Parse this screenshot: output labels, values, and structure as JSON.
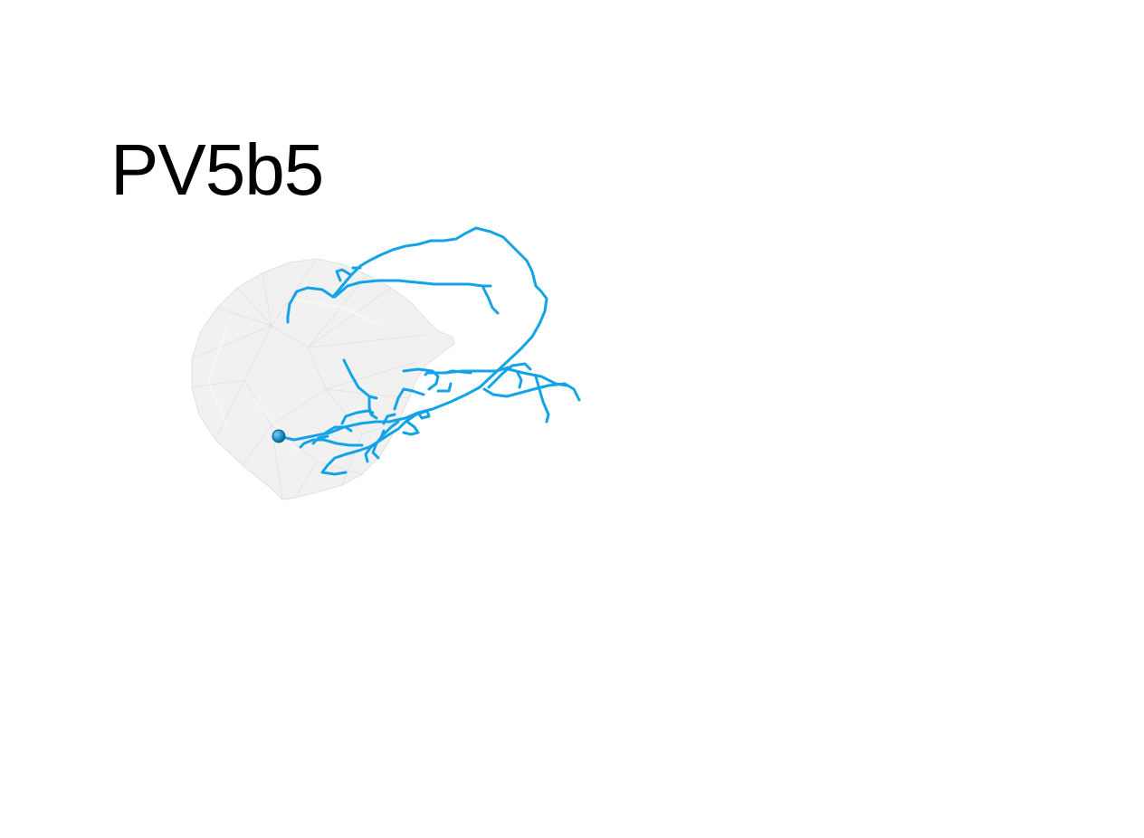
{
  "title": "PV5b5",
  "colors": {
    "neuron": "#13a3e6",
    "soma": "#1a8fc7",
    "neuropil": "#e6e6e6",
    "background": "#ffffff"
  },
  "neuron_label": "neuron-skeleton",
  "neuropil_label": "neuropil-mesh"
}
